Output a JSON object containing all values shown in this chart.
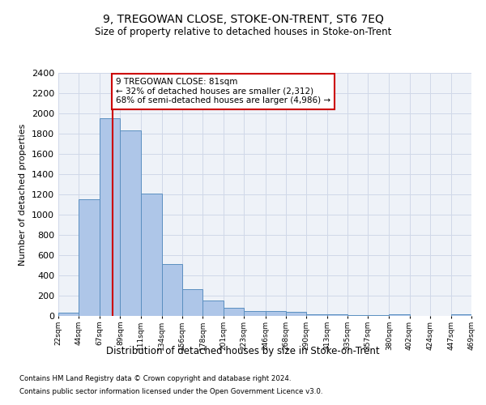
{
  "title": "9, TREGOWAN CLOSE, STOKE-ON-TRENT, ST6 7EQ",
  "subtitle": "Size of property relative to detached houses in Stoke-on-Trent",
  "xlabel": "Distribution of detached houses by size in Stoke-on-Trent",
  "ylabel": "Number of detached properties",
  "footnote1": "Contains HM Land Registry data © Crown copyright and database right 2024.",
  "footnote2": "Contains public sector information licensed under the Open Government Licence v3.0.",
  "property_size": 81,
  "annotation_text": "9 TREGOWAN CLOSE: 81sqm\n← 32% of detached houses are smaller (2,312)\n68% of semi-detached houses are larger (4,986) →",
  "bar_edges": [
    22,
    44,
    67,
    89,
    111,
    134,
    156,
    178,
    201,
    223,
    246,
    268,
    290,
    313,
    335,
    357,
    380,
    402,
    424,
    447,
    469
  ],
  "bar_heights": [
    30,
    1150,
    1950,
    1830,
    1210,
    510,
    265,
    150,
    80,
    50,
    45,
    40,
    20,
    20,
    10,
    5,
    15,
    0,
    0,
    20
  ],
  "bar_color": "#aec6e8",
  "bar_edge_color": "#5a8fc0",
  "grid_color": "#d0d8e8",
  "bg_color": "#eef2f8",
  "vline_color": "#cc0000",
  "annotation_box_color": "#cc0000",
  "ylim": [
    0,
    2400
  ],
  "yticks": [
    0,
    200,
    400,
    600,
    800,
    1000,
    1200,
    1400,
    1600,
    1800,
    2000,
    2200,
    2400
  ]
}
